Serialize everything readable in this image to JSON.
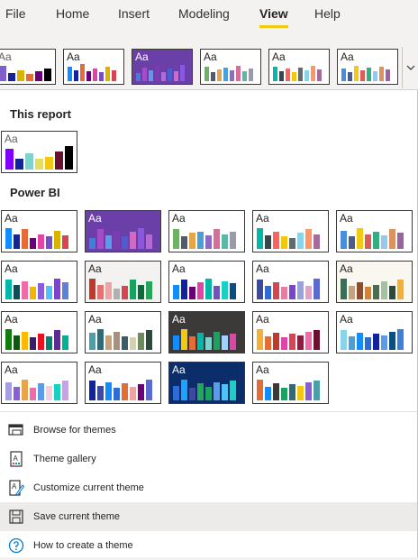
{
  "ribbon": {
    "tabs": [
      {
        "label": "File",
        "active": false
      },
      {
        "label": "Home",
        "active": false
      },
      {
        "label": "Insert",
        "active": false
      },
      {
        "label": "Modeling",
        "active": false
      },
      {
        "label": "View",
        "active": true
      },
      {
        "label": "Help",
        "active": false
      }
    ],
    "scroll_icon": "chevron-down-icon"
  },
  "sections": {
    "this_report": "This report",
    "power_bi": "Power BI"
  },
  "theme_sample_label": "Aa",
  "themes": {
    "strip": [
      {
        "id": "s1",
        "bg": "#ffffff",
        "aa": "#605e5c",
        "bars": [
          {
            "c": "#7f5fcc",
            "h": 0.85
          },
          {
            "c": "#12239e",
            "h": 0.45
          },
          {
            "c": "#d9b300",
            "h": 0.6
          },
          {
            "c": "#e66c37",
            "h": 0.4
          },
          {
            "c": "#6b007b",
            "h": 0.55
          },
          {
            "c": "#000000",
            "h": 0.7
          }
        ]
      },
      {
        "id": "s2",
        "bg": "#ffffff",
        "aa": "#252423",
        "bars": [
          {
            "c": "#118dff",
            "h": 0.8
          },
          {
            "c": "#12239e",
            "h": 0.6
          },
          {
            "c": "#e66c37",
            "h": 0.95
          },
          {
            "c": "#6b007b",
            "h": 0.55
          },
          {
            "c": "#e044a7",
            "h": 0.7
          },
          {
            "c": "#744ec2",
            "h": 0.5
          },
          {
            "c": "#d9b300",
            "h": 0.8
          },
          {
            "c": "#d64550",
            "h": 0.6
          }
        ]
      },
      {
        "id": "s3",
        "bg": "#6b3fa8",
        "aa": "#ffffff",
        "bars": [
          {
            "c": "#3f7fd9",
            "h": 0.45
          },
          {
            "c": "#a44cc9",
            "h": 0.75
          },
          {
            "c": "#5a9bea",
            "h": 0.6
          },
          {
            "c": "#7a3db0",
            "h": 0.85
          },
          {
            "c": "#b36ad6",
            "h": 0.5
          },
          {
            "c": "#4d5fd0",
            "h": 0.7
          },
          {
            "c": "#d06ac4",
            "h": 0.55
          },
          {
            "c": "#8a58e0",
            "h": 0.9
          }
        ]
      },
      {
        "id": "s4",
        "bg": "#ffffff",
        "aa": "#252423",
        "bars": [
          {
            "c": "#70b264",
            "h": 0.8
          },
          {
            "c": "#55596c",
            "h": 0.5
          },
          {
            "c": "#e6a44b",
            "h": 0.65
          },
          {
            "c": "#4a9fd6",
            "h": 0.75
          },
          {
            "c": "#8c6bc8",
            "h": 0.6
          },
          {
            "c": "#d86c9a",
            "h": 0.85
          },
          {
            "c": "#5bb8a6",
            "h": 0.55
          },
          {
            "c": "#9a9aa8",
            "h": 0.7
          }
        ]
      },
      {
        "id": "s5",
        "bg": "#ffffff",
        "aa": "#252423",
        "bars": [
          {
            "c": "#01b8aa",
            "h": 0.8
          },
          {
            "c": "#374649",
            "h": 0.55
          },
          {
            "c": "#fd625e",
            "h": 0.7
          },
          {
            "c": "#f2c80f",
            "h": 0.5
          },
          {
            "c": "#5f6b6d",
            "h": 0.75
          },
          {
            "c": "#8ad4eb",
            "h": 0.6
          },
          {
            "c": "#fe9666",
            "h": 0.85
          },
          {
            "c": "#a66999",
            "h": 0.65
          }
        ]
      },
      {
        "id": "s6",
        "bg": "#ffffff",
        "aa": "#252423",
        "bars": [
          {
            "c": "#4a8ddc",
            "h": 0.7
          },
          {
            "c": "#4c5d8a",
            "h": 0.5
          },
          {
            "c": "#f3c911",
            "h": 0.85
          },
          {
            "c": "#dc5b57",
            "h": 0.6
          },
          {
            "c": "#33ae81",
            "h": 0.75
          },
          {
            "c": "#95c8f0",
            "h": 0.55
          },
          {
            "c": "#dd915f",
            "h": 0.8
          },
          {
            "c": "#9a64a0",
            "h": 0.65
          }
        ]
      }
    ],
    "report": [
      {
        "id": "r1",
        "bg": "#ffffff",
        "aa": "#605e5c",
        "bars": [
          {
            "c": "#7f00ff",
            "h": 0.85
          },
          {
            "c": "#12239e",
            "h": 0.45
          },
          {
            "c": "#7fd1cc",
            "h": 0.65
          },
          {
            "c": "#e6dd5c",
            "h": 0.45
          },
          {
            "c": "#f2c811",
            "h": 0.5
          },
          {
            "c": "#6b0f2f",
            "h": 0.75
          },
          {
            "c": "#000000",
            "h": 0.95
          }
        ]
      }
    ],
    "power_bi": [
      {
        "id": "p1",
        "bg": "#ffffff",
        "aa": "#252423",
        "bars": [
          {
            "c": "#118dff",
            "h": 0.85
          },
          {
            "c": "#12239e",
            "h": 0.6
          },
          {
            "c": "#e66c37",
            "h": 0.8
          },
          {
            "c": "#6b007b",
            "h": 0.45
          },
          {
            "c": "#e044a7",
            "h": 0.6
          },
          {
            "c": "#744ec2",
            "h": 0.5
          },
          {
            "c": "#d9b300",
            "h": 0.75
          },
          {
            "c": "#d64550",
            "h": 0.55
          }
        ]
      },
      {
        "id": "p2",
        "bg": "#6b3fa8",
        "aa": "#ffffff",
        "bars": [
          {
            "c": "#3f7fd9",
            "h": 0.45
          },
          {
            "c": "#a44cc9",
            "h": 0.8
          },
          {
            "c": "#5a9bea",
            "h": 0.55
          },
          {
            "c": "#7a3db0",
            "h": 0.75
          },
          {
            "c": "#4d5fd0",
            "h": 0.5
          },
          {
            "c": "#d06ac4",
            "h": 0.7
          },
          {
            "c": "#8a58e0",
            "h": 0.85
          },
          {
            "c": "#b36ad6",
            "h": 0.6
          }
        ]
      },
      {
        "id": "p3",
        "bg": "#ffffff",
        "aa": "#252423",
        "bars": [
          {
            "c": "#70b264",
            "h": 0.8
          },
          {
            "c": "#55596c",
            "h": 0.5
          },
          {
            "c": "#e6a44b",
            "h": 0.65
          },
          {
            "c": "#4a9fd6",
            "h": 0.7
          },
          {
            "c": "#8c6bc8",
            "h": 0.55
          },
          {
            "c": "#d86c9a",
            "h": 0.8
          },
          {
            "c": "#5bb8a6",
            "h": 0.6
          },
          {
            "c": "#9a9aa8",
            "h": 0.7
          }
        ]
      },
      {
        "id": "p4",
        "bg": "#ffffff",
        "aa": "#252423",
        "bars": [
          {
            "c": "#01b8aa",
            "h": 0.85
          },
          {
            "c": "#374649",
            "h": 0.55
          },
          {
            "c": "#fd625e",
            "h": 0.7
          },
          {
            "c": "#f2c80f",
            "h": 0.5
          },
          {
            "c": "#5f6b6d",
            "h": 0.45
          },
          {
            "c": "#8ad4eb",
            "h": 0.65
          },
          {
            "c": "#fe9666",
            "h": 0.8
          },
          {
            "c": "#a66999",
            "h": 0.6
          }
        ]
      },
      {
        "id": "p5",
        "bg": "#ffffff",
        "aa": "#252423",
        "bars": [
          {
            "c": "#4a8ddc",
            "h": 0.75
          },
          {
            "c": "#4c5d8a",
            "h": 0.5
          },
          {
            "c": "#f3c911",
            "h": 0.85
          },
          {
            "c": "#dc5b57",
            "h": 0.6
          },
          {
            "c": "#33ae81",
            "h": 0.7
          },
          {
            "c": "#95c8f0",
            "h": 0.55
          },
          {
            "c": "#dd915f",
            "h": 0.8
          },
          {
            "c": "#9a64a0",
            "h": 0.65
          }
        ]
      },
      {
        "id": "p6",
        "bg": "#ffffff",
        "aa": "#252423",
        "bars": [
          {
            "c": "#01b8aa",
            "h": 0.8
          },
          {
            "c": "#0a4f57",
            "h": 0.6
          },
          {
            "c": "#f06ca8",
            "h": 0.75
          },
          {
            "c": "#f2b500",
            "h": 0.5
          },
          {
            "c": "#8b5dd6",
            "h": 0.65
          },
          {
            "c": "#4fc3f7",
            "h": 0.55
          },
          {
            "c": "#7a45c8",
            "h": 0.85
          },
          {
            "c": "#5c82d6",
            "h": 0.7
          }
        ]
      },
      {
        "id": "p7",
        "bg": "#f3f2f1",
        "aa": "#252423",
        "bars": [
          {
            "c": "#c0392b",
            "h": 0.85
          },
          {
            "c": "#e57373",
            "h": 0.6
          },
          {
            "c": "#f0a3a3",
            "h": 0.7
          },
          {
            "c": "#b0b0b0",
            "h": 0.45
          },
          {
            "c": "#d64550",
            "h": 0.55
          },
          {
            "c": "#1aa260",
            "h": 0.8
          },
          {
            "c": "#0c6b3a",
            "h": 0.6
          },
          {
            "c": "#26a65b",
            "h": 0.75
          }
        ]
      },
      {
        "id": "p8",
        "bg": "#ffffff",
        "aa": "#252423",
        "bars": [
          {
            "c": "#118dff",
            "h": 0.6
          },
          {
            "c": "#12239e",
            "h": 0.8
          },
          {
            "c": "#6b007b",
            "h": 0.5
          },
          {
            "c": "#e044a7",
            "h": 0.7
          },
          {
            "c": "#00b8a9",
            "h": 0.85
          },
          {
            "c": "#744ec2",
            "h": 0.55
          },
          {
            "c": "#1ad0c2",
            "h": 0.75
          },
          {
            "c": "#0a4f80",
            "h": 0.65
          }
        ]
      },
      {
        "id": "p9",
        "bg": "#ffffff",
        "aa": "#252423",
        "bars": [
          {
            "c": "#3b4aa0",
            "h": 0.8
          },
          {
            "c": "#2e6bd6",
            "h": 0.55
          },
          {
            "c": "#d64550",
            "h": 0.7
          },
          {
            "c": "#e57fa0",
            "h": 0.5
          },
          {
            "c": "#7a45c8",
            "h": 0.6
          },
          {
            "c": "#9aa3d6",
            "h": 0.75
          },
          {
            "c": "#e6a0c8",
            "h": 0.55
          },
          {
            "c": "#5a6ad0",
            "h": 0.85
          }
        ]
      },
      {
        "id": "p10",
        "bg": "#faf7f0",
        "aa": "#252423",
        "bars": [
          {
            "c": "#3b6e57",
            "h": 0.85
          },
          {
            "c": "#c8a27a",
            "h": 0.55
          },
          {
            "c": "#8c4e2d",
            "h": 0.7
          },
          {
            "c": "#d9822b",
            "h": 0.5
          },
          {
            "c": "#4d6b50",
            "h": 0.6
          },
          {
            "c": "#a3c2a1",
            "h": 0.75
          },
          {
            "c": "#2e4a3c",
            "h": 0.55
          },
          {
            "c": "#f2b134",
            "h": 0.8
          }
        ]
      },
      {
        "id": "p11",
        "bg": "#ffffff",
        "aa": "#252423",
        "bars": [
          {
            "c": "#107c10",
            "h": 0.85
          },
          {
            "c": "#0b5a0b",
            "h": 0.6
          },
          {
            "c": "#ffb900",
            "h": 0.75
          },
          {
            "c": "#3a1e6b",
            "h": 0.5
          },
          {
            "c": "#e81123",
            "h": 0.65
          },
          {
            "c": "#008272",
            "h": 0.55
          },
          {
            "c": "#5c2d91",
            "h": 0.8
          },
          {
            "c": "#00b294",
            "h": 0.6
          }
        ]
      },
      {
        "id": "p12",
        "bg": "#ffffff",
        "aa": "#252423",
        "bars": [
          {
            "c": "#4a9fa8",
            "h": 0.7
          },
          {
            "c": "#2e6b77",
            "h": 0.85
          },
          {
            "c": "#c8a27a",
            "h": 0.6
          },
          {
            "c": "#a4917f",
            "h": 0.75
          },
          {
            "c": "#3b5a6b",
            "h": 0.55
          },
          {
            "c": "#d4d0b0",
            "h": 0.5
          },
          {
            "c": "#6b8c5a",
            "h": 0.7
          },
          {
            "c": "#2e4a3c",
            "h": 0.8
          }
        ]
      },
      {
        "id": "p13",
        "bg": "#3b3a39",
        "aa": "#ffffff",
        "bars": [
          {
            "c": "#118dff",
            "h": 0.6
          },
          {
            "c": "#f2c811",
            "h": 0.85
          },
          {
            "c": "#e66c37",
            "h": 0.55
          },
          {
            "c": "#00b8a9",
            "h": 0.7
          },
          {
            "c": "#7fd1cc",
            "h": 0.5
          },
          {
            "c": "#1aa260",
            "h": 0.75
          },
          {
            "c": "#a0d1ff",
            "h": 0.6
          },
          {
            "c": "#e044a7",
            "h": 0.65
          }
        ]
      },
      {
        "id": "p14",
        "bg": "#ffffff",
        "aa": "#252423",
        "bars": [
          {
            "c": "#f2b134",
            "h": 0.85
          },
          {
            "c": "#e66c37",
            "h": 0.55
          },
          {
            "c": "#c0392b",
            "h": 0.7
          },
          {
            "c": "#e044a7",
            "h": 0.5
          },
          {
            "c": "#d64550",
            "h": 0.65
          },
          {
            "c": "#8c1d40",
            "h": 0.6
          },
          {
            "c": "#f06ca8",
            "h": 0.75
          },
          {
            "c": "#6b0f2f",
            "h": 0.8
          }
        ]
      },
      {
        "id": "p15",
        "bg": "#ffffff",
        "aa": "#252423",
        "bars": [
          {
            "c": "#8ad4eb",
            "h": 0.8
          },
          {
            "c": "#4a9fd6",
            "h": 0.55
          },
          {
            "c": "#118dff",
            "h": 0.7
          },
          {
            "c": "#2e6bd6",
            "h": 0.5
          },
          {
            "c": "#12239e",
            "h": 0.65
          },
          {
            "c": "#5a9bea",
            "h": 0.6
          },
          {
            "c": "#0a4f80",
            "h": 0.75
          },
          {
            "c": "#3f7fd9",
            "h": 0.85
          }
        ]
      },
      {
        "id": "p16",
        "bg": "#ffffff",
        "aa": "#252423",
        "bars": [
          {
            "c": "#a39fe0",
            "h": 0.75
          },
          {
            "c": "#8b5dd6",
            "h": 0.55
          },
          {
            "c": "#e6a44b",
            "h": 0.85
          },
          {
            "c": "#f06ca8",
            "h": 0.5
          },
          {
            "c": "#5a9bea",
            "h": 0.7
          },
          {
            "c": "#f2d0e0",
            "h": 0.6
          },
          {
            "c": "#1ad0c2",
            "h": 0.65
          },
          {
            "c": "#c8a2e8",
            "h": 0.8
          }
        ]
      },
      {
        "id": "p17",
        "bg": "#ffffff",
        "aa": "#252423",
        "bars": [
          {
            "c": "#12239e",
            "h": 0.8
          },
          {
            "c": "#3b4aa0",
            "h": 0.6
          },
          {
            "c": "#118dff",
            "h": 0.75
          },
          {
            "c": "#2e6bd6",
            "h": 0.5
          },
          {
            "c": "#e66c37",
            "h": 0.7
          },
          {
            "c": "#f0a3a3",
            "h": 0.55
          },
          {
            "c": "#6b007b",
            "h": 0.65
          },
          {
            "c": "#5a6ad0",
            "h": 0.85
          }
        ]
      },
      {
        "id": "p18",
        "bg": "#0b2e6b",
        "aa": "#ffffff",
        "bars": [
          {
            "c": "#2e6bd6",
            "h": 0.6
          },
          {
            "c": "#1aa3ff",
            "h": 0.85
          },
          {
            "c": "#3b4aa0",
            "h": 0.5
          },
          {
            "c": "#26a65b",
            "h": 0.7
          },
          {
            "c": "#1aa260",
            "h": 0.55
          },
          {
            "c": "#5a9bea",
            "h": 0.75
          },
          {
            "c": "#4fc3f7",
            "h": 0.65
          },
          {
            "c": "#1ad0c2",
            "h": 0.8
          }
        ]
      },
      {
        "id": "p19",
        "bg": "#ffffff",
        "aa": "#252423",
        "bars": [
          {
            "c": "#e66c37",
            "h": 0.85
          },
          {
            "c": "#118dff",
            "h": 0.55
          },
          {
            "c": "#3b3a39",
            "h": 0.7
          },
          {
            "c": "#1aa260",
            "h": 0.5
          },
          {
            "c": "#2e6b77",
            "h": 0.65
          },
          {
            "c": "#f2c811",
            "h": 0.6
          },
          {
            "c": "#8b5dd6",
            "h": 0.75
          },
          {
            "c": "#4a9fa8",
            "h": 0.8
          }
        ]
      }
    ]
  },
  "menu": [
    {
      "label": "Browse for themes",
      "icon": "browse-themes-icon"
    },
    {
      "label": "Theme gallery",
      "icon": "theme-gallery-icon"
    },
    {
      "label": "Customize current theme",
      "icon": "customize-theme-icon"
    },
    {
      "label": "Save current theme",
      "icon": "save-icon",
      "hover": true
    },
    {
      "label": "How to create a theme",
      "icon": "help-circle-icon"
    }
  ]
}
